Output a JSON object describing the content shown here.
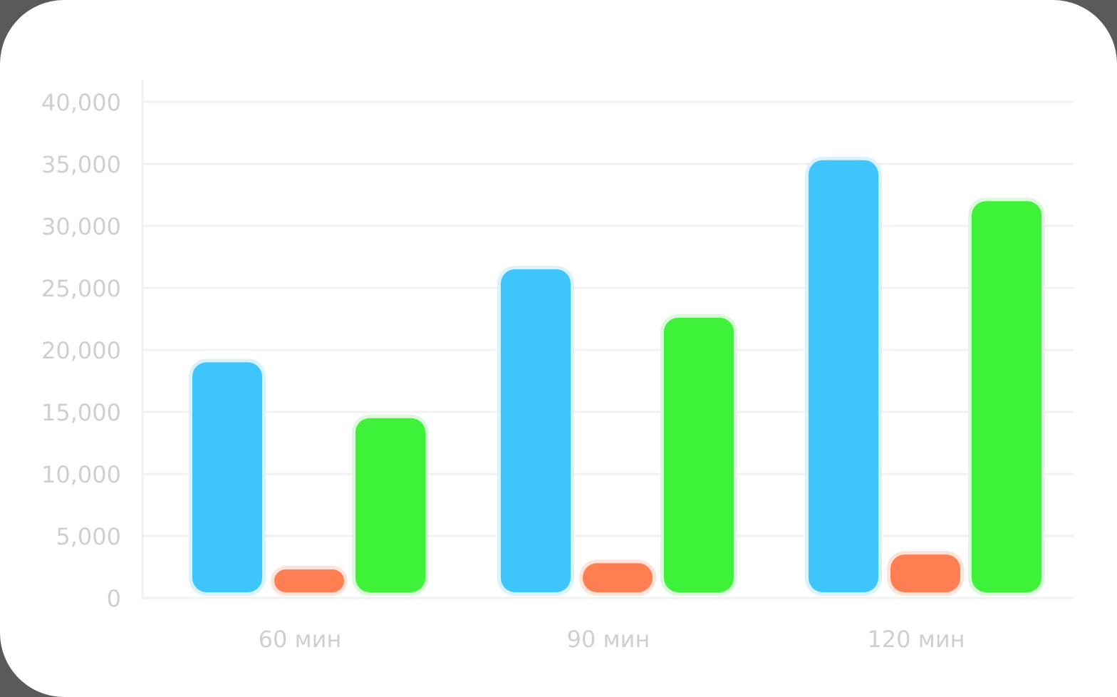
{
  "chart_data": {
    "type": "bar",
    "categories": [
      "60 мин",
      "90 мин",
      "120 мин"
    ],
    "series": [
      {
        "color": "#3ec5fb",
        "glow": "#d9f3fe",
        "values": [
          19000,
          26500,
          35300
        ]
      },
      {
        "color": "#ff7f53",
        "glow": "#ffe3da",
        "values": [
          2300,
          2800,
          3500
        ]
      },
      {
        "color": "#3ef23a",
        "glow": "#dcfadb",
        "values": [
          14500,
          22600,
          32000
        ]
      }
    ],
    "ylim": [
      0,
      40000
    ],
    "yticks": [
      "0",
      "5,000",
      "10,000",
      "15,000",
      "20,000",
      "25,000",
      "30,000",
      "35,000",
      "40,000"
    ],
    "grid": true,
    "title": "",
    "xlabel": "",
    "ylabel": ""
  }
}
